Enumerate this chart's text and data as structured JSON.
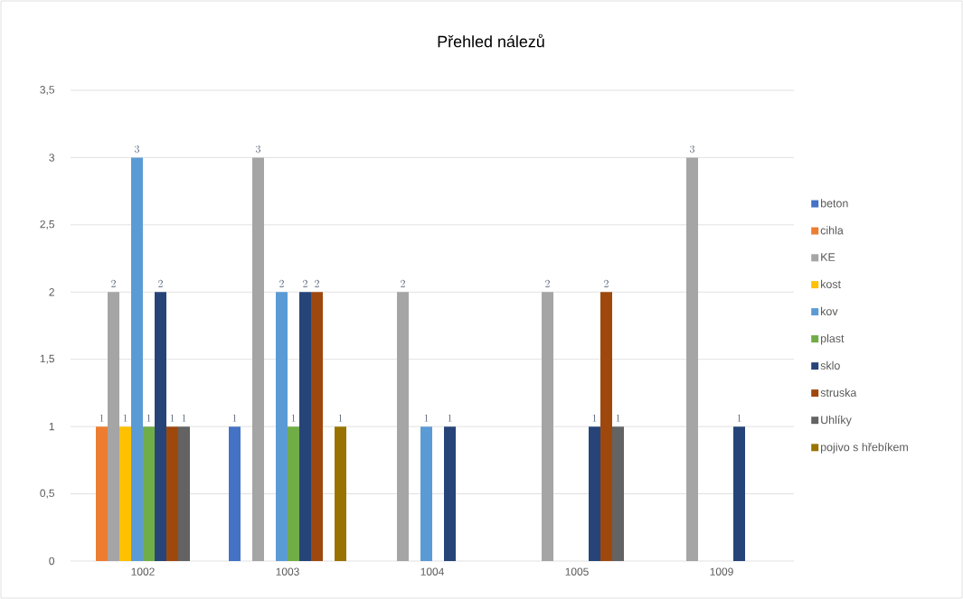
{
  "chart_data": {
    "type": "bar",
    "title": "Přehled nálezů",
    "categories": [
      "1002",
      "1003",
      "1004",
      "1005",
      "1009"
    ],
    "series": [
      {
        "name": "beton",
        "color": "#4472c4",
        "values": [
          null,
          1,
          null,
          null,
          null
        ]
      },
      {
        "name": "cihla",
        "color": "#ed7d31",
        "values": [
          1,
          null,
          null,
          null,
          null
        ]
      },
      {
        "name": "KE",
        "color": "#a5a5a5",
        "values": [
          2,
          3,
          2,
          2,
          3
        ]
      },
      {
        "name": "kost",
        "color": "#ffc000",
        "values": [
          1,
          null,
          null,
          null,
          null
        ]
      },
      {
        "name": "kov",
        "color": "#5b9bd5",
        "values": [
          3,
          2,
          1,
          null,
          null
        ]
      },
      {
        "name": "plast",
        "color": "#70ad47",
        "values": [
          1,
          1,
          null,
          null,
          null
        ]
      },
      {
        "name": "sklo",
        "color": "#264478",
        "values": [
          2,
          2,
          1,
          1,
          1
        ]
      },
      {
        "name": "struska",
        "color": "#9e480e",
        "values": [
          1,
          2,
          null,
          2,
          null
        ]
      },
      {
        "name": "Uhlíky",
        "color": "#636363",
        "values": [
          1,
          null,
          null,
          1,
          null
        ]
      },
      {
        "name": "pojivo s hřebíkem",
        "color": "#997300",
        "values": [
          null,
          1,
          null,
          null,
          null
        ]
      }
    ],
    "ylim": [
      0,
      3.5
    ],
    "yticks": [
      0,
      {
        "value": 0.5,
        "label": "0,5"
      },
      1,
      {
        "value": 1.5,
        "label": "1,5"
      },
      2,
      {
        "value": 2.5,
        "label": "2,5"
      },
      3,
      {
        "value": 3.5,
        "label": "3,5"
      }
    ],
    "grid": "y",
    "legend": "right",
    "data_labels": true
  }
}
